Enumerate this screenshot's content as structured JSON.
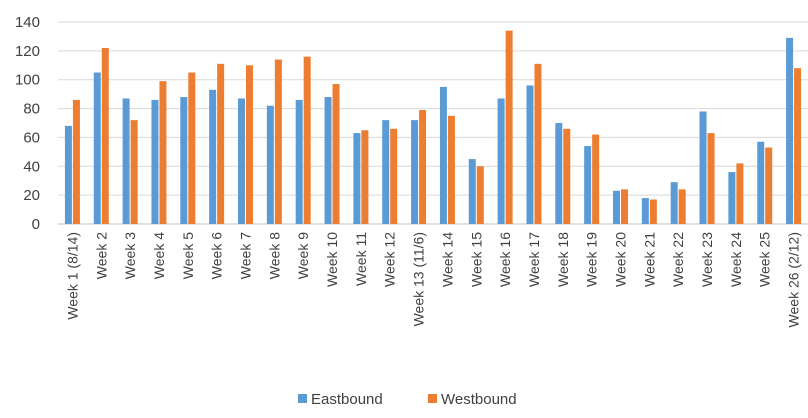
{
  "chart_data": {
    "type": "bar",
    "title": "",
    "xlabel": "",
    "ylabel": "",
    "ylim": [
      0,
      140
    ],
    "yticks": [
      0,
      20,
      40,
      60,
      80,
      100,
      120,
      140
    ],
    "grid": true,
    "legend_position": "bottom",
    "categories": [
      "Week 1 (8/14)",
      "Week 2",
      "Week 3",
      "Week 4",
      "Week 5",
      "Week 6",
      "Week 7",
      "Week 8",
      "Week 9",
      "Week 10",
      "Week 11",
      "Week 12",
      "Week 13 (11/6)",
      "Week 14",
      "Week 15",
      "Week 16",
      "Week 17",
      "Week 18",
      "Week 19",
      "Week 20",
      "Week 21",
      "Week 22",
      "Week 23",
      "Week 24",
      "Week 25",
      "Week 26 (2/12)"
    ],
    "series": [
      {
        "name": "Eastbound",
        "color": "#5B9BD5",
        "values": [
          68,
          105,
          87,
          86,
          88,
          93,
          87,
          82,
          86,
          88,
          63,
          72,
          72,
          95,
          45,
          87,
          96,
          70,
          54,
          23,
          18,
          29,
          78,
          36,
          57,
          129
        ]
      },
      {
        "name": "Westbound",
        "color": "#ED7D31",
        "values": [
          86,
          122,
          72,
          99,
          105,
          111,
          110,
          114,
          116,
          97,
          65,
          66,
          79,
          75,
          40,
          134,
          111,
          66,
          62,
          24,
          17,
          24,
          63,
          42,
          53,
          108
        ]
      }
    ]
  }
}
